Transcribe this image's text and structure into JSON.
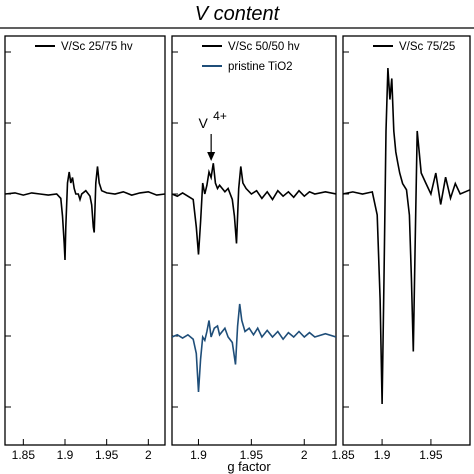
{
  "chart_data": {
    "type": "line",
    "title": "V content",
    "xlabel": "g factor",
    "ylabel": "",
    "grid": false,
    "annotation": {
      "label": "V",
      "superscript": "4+",
      "x": 1.912,
      "panel": 1
    },
    "panels": [
      {
        "xlim": [
          1.828,
          2.02
        ],
        "ylim": [
          -1.0,
          1.0
        ],
        "xticks": [
          1.85,
          1.9,
          1.95,
          2.0
        ],
        "xtick_labels": [
          "1.85",
          "1.9",
          "1.95",
          "2"
        ],
        "legend_location": "top-right",
        "series": [
          {
            "name": "V/Sc 25/75 hv",
            "color": "#000000",
            "points": [
              [
                1.828,
                0.0
              ],
              [
                1.84,
                0.01
              ],
              [
                1.85,
                -0.01
              ],
              [
                1.86,
                0.01
              ],
              [
                1.87,
                0.0
              ],
              [
                1.88,
                -0.01
              ],
              [
                1.89,
                0.0
              ],
              [
                1.895,
                -0.04
              ],
              [
                1.897,
                -0.2
              ],
              [
                1.899,
                -0.45
              ],
              [
                1.9,
                -0.6
              ],
              [
                1.901,
                -0.3
              ],
              [
                1.903,
                0.1
              ],
              [
                1.905,
                0.2
              ],
              [
                1.907,
                0.1
              ],
              [
                1.909,
                0.15
              ],
              [
                1.911,
                0.05
              ],
              [
                1.913,
                0.0
              ],
              [
                1.916,
                0.0
              ],
              [
                1.918,
                -0.05
              ],
              [
                1.92,
                0.0
              ],
              [
                1.925,
                0.03
              ],
              [
                1.93,
                -0.02
              ],
              [
                1.932,
                -0.1
              ],
              [
                1.934,
                -0.3
              ],
              [
                1.935,
                -0.35
              ],
              [
                1.937,
                0.1
              ],
              [
                1.939,
                0.25
              ],
              [
                1.941,
                0.1
              ],
              [
                1.944,
                0.03
              ],
              [
                1.95,
                0.01
              ],
              [
                1.96,
                0.0
              ],
              [
                1.97,
                0.02
              ],
              [
                1.98,
                -0.01
              ],
              [
                1.99,
                0.01
              ],
              [
                2.0,
                0.02
              ],
              [
                2.01,
                -0.01
              ],
              [
                2.02,
                0.0
              ]
            ]
          }
        ]
      },
      {
        "xlim": [
          1.875,
          2.03
        ],
        "ylim": [
          -1.0,
          1.0
        ],
        "xticks": [
          1.9,
          1.95,
          2.0
        ],
        "xtick_labels": [
          "1.9",
          "1.95",
          "2"
        ],
        "legend_location": "top-right",
        "series": [
          {
            "name": "V/Sc 50/50 hv",
            "color": "#000000",
            "points": [
              [
                1.875,
                0.0
              ],
              [
                1.88,
                -0.02
              ],
              [
                1.885,
                0.01
              ],
              [
                1.89,
                -0.02
              ],
              [
                1.895,
                -0.05
              ],
              [
                1.898,
                -0.3
              ],
              [
                1.9,
                -0.55
              ],
              [
                1.902,
                -0.25
              ],
              [
                1.904,
                0.1
              ],
              [
                1.906,
                0.0
              ],
              [
                1.908,
                0.08
              ],
              [
                1.91,
                0.2
              ],
              [
                1.912,
                0.15
              ],
              [
                1.914,
                0.28
              ],
              [
                1.916,
                0.1
              ],
              [
                1.918,
                0.05
              ],
              [
                1.92,
                0.08
              ],
              [
                1.925,
                0.02
              ],
              [
                1.928,
                0.05
              ],
              [
                1.932,
                -0.05
              ],
              [
                1.934,
                -0.2
              ],
              [
                1.936,
                -0.45
              ],
              [
                1.938,
                0.05
              ],
              [
                1.94,
                0.25
              ],
              [
                1.942,
                0.1
              ],
              [
                1.945,
                0.05
              ],
              [
                1.95,
                0.0
              ],
              [
                1.955,
                0.03
              ],
              [
                1.96,
                -0.04
              ],
              [
                1.965,
                0.02
              ],
              [
                1.97,
                -0.05
              ],
              [
                1.975,
                0.03
              ],
              [
                1.98,
                -0.02
              ],
              [
                1.985,
                0.02
              ],
              [
                1.99,
                -0.03
              ],
              [
                1.995,
                0.03
              ],
              [
                2.0,
                -0.02
              ],
              [
                2.005,
                0.02
              ],
              [
                2.01,
                0.0
              ],
              [
                2.02,
                0.02
              ],
              [
                2.03,
                0.0
              ]
            ]
          },
          {
            "name": "pristine TiO2",
            "color": "#1f4e79",
            "points": [
              [
                1.875,
                -1.3
              ],
              [
                1.88,
                -1.28
              ],
              [
                1.885,
                -1.31
              ],
              [
                1.89,
                -1.28
              ],
              [
                1.895,
                -1.32
              ],
              [
                1.898,
                -1.45
              ],
              [
                1.9,
                -1.8
              ],
              [
                1.902,
                -1.5
              ],
              [
                1.904,
                -1.3
              ],
              [
                1.906,
                -1.33
              ],
              [
                1.908,
                -1.25
              ],
              [
                1.91,
                -1.15
              ],
              [
                1.912,
                -1.3
              ],
              [
                1.915,
                -1.22
              ],
              [
                1.918,
                -1.2
              ],
              [
                1.92,
                -1.28
              ],
              [
                1.925,
                -1.22
              ],
              [
                1.928,
                -1.3
              ],
              [
                1.932,
                -1.35
              ],
              [
                1.935,
                -1.55
              ],
              [
                1.937,
                -1.2
              ],
              [
                1.939,
                -1.0
              ],
              [
                1.941,
                -1.15
              ],
              [
                1.944,
                -1.25
              ],
              [
                1.948,
                -1.22
              ],
              [
                1.952,
                -1.28
              ],
              [
                1.956,
                -1.22
              ],
              [
                1.96,
                -1.3
              ],
              [
                1.965,
                -1.24
              ],
              [
                1.97,
                -1.3
              ],
              [
                1.975,
                -1.25
              ],
              [
                1.98,
                -1.32
              ],
              [
                1.985,
                -1.26
              ],
              [
                1.99,
                -1.3
              ],
              [
                1.995,
                -1.25
              ],
              [
                2.0,
                -1.3
              ],
              [
                2.005,
                -1.26
              ],
              [
                2.01,
                -1.3
              ],
              [
                2.02,
                -1.27
              ],
              [
                2.03,
                -1.3
              ]
            ]
          }
        ]
      },
      {
        "xlim": [
          1.86,
          1.99
        ],
        "ylim": [
          -1.0,
          1.0
        ],
        "xticks": [
          1.85,
          1.9,
          1.95
        ],
        "xtick_labels": [
          "1.85",
          "1.9",
          "1.95"
        ],
        "legend_location": "top-right",
        "series": [
          {
            "name": "V/Sc 75/25",
            "color": "#000000",
            "points": [
              [
                1.86,
                0.0
              ],
              [
                1.87,
                0.01
              ],
              [
                1.88,
                0.0
              ],
              [
                1.89,
                0.01
              ],
              [
                1.895,
                -0.1
              ],
              [
                1.898,
                -0.5
              ],
              [
                1.9,
                -1.0
              ],
              [
                1.902,
                -0.4
              ],
              [
                1.904,
                0.3
              ],
              [
                1.906,
                0.6
              ],
              [
                1.908,
                0.45
              ],
              [
                1.91,
                0.55
              ],
              [
                1.912,
                0.3
              ],
              [
                1.914,
                0.2
              ],
              [
                1.916,
                0.15
              ],
              [
                1.918,
                0.1
              ],
              [
                1.921,
                0.05
              ],
              [
                1.925,
                0.02
              ],
              [
                1.928,
                -0.1
              ],
              [
                1.93,
                -0.4
              ],
              [
                1.932,
                -0.75
              ],
              [
                1.934,
                -0.2
              ],
              [
                1.936,
                0.3
              ],
              [
                1.938,
                0.2
              ],
              [
                1.94,
                0.1
              ],
              [
                1.945,
                0.05
              ],
              [
                1.95,
                0.0
              ],
              [
                1.955,
                0.1
              ],
              [
                1.96,
                -0.05
              ],
              [
                1.965,
                0.08
              ],
              [
                1.97,
                -0.02
              ],
              [
                1.975,
                0.05
              ],
              [
                1.98,
                0.0
              ],
              [
                1.99,
                0.02
              ]
            ]
          }
        ]
      }
    ]
  }
}
